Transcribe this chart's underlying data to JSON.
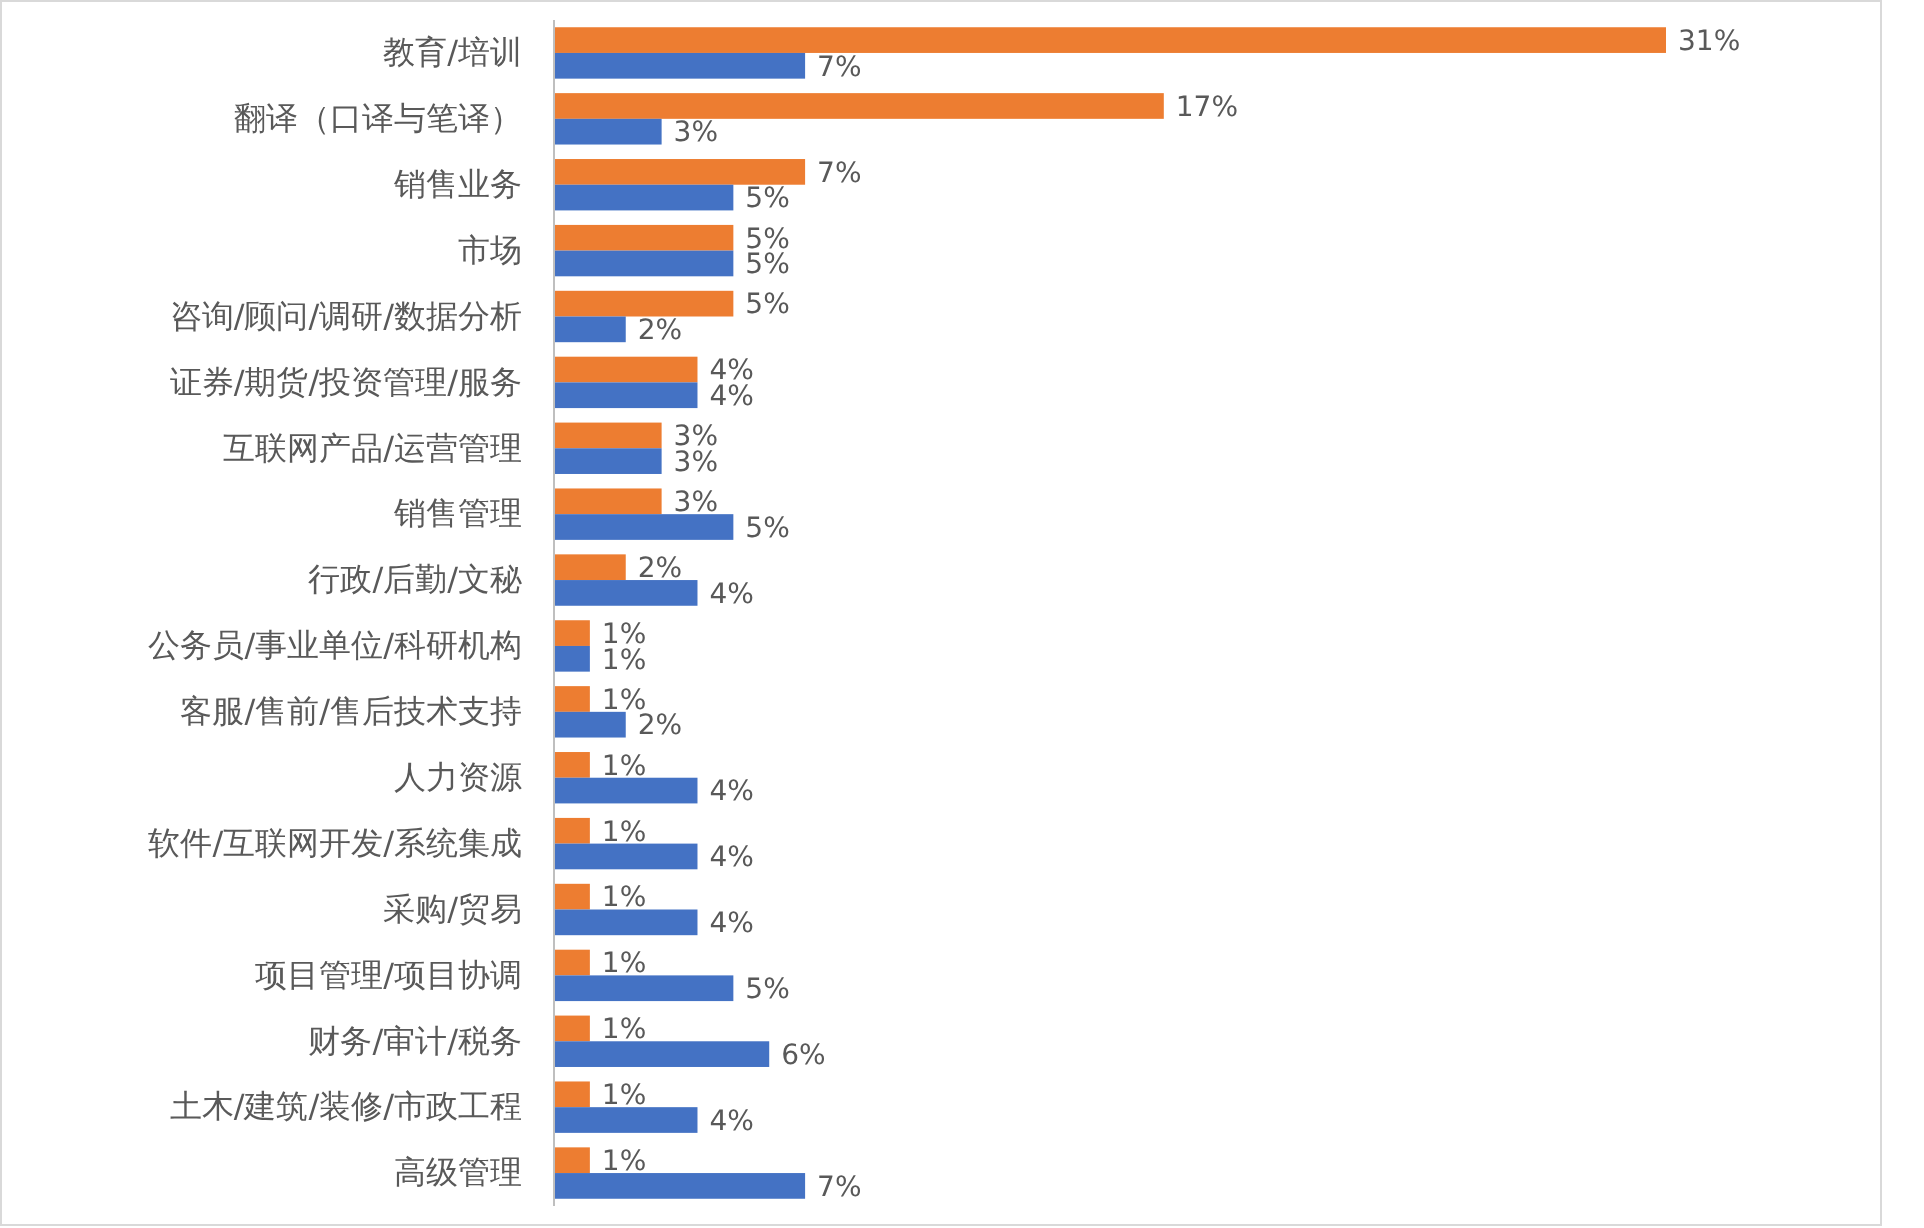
{
  "chart_data": {
    "type": "bar",
    "orientation": "horizontal",
    "categories": [
      "教育/培训",
      "翻译（口译与笔译）",
      "销售业务",
      "市场",
      "咨询/顾问/调研/数据分析",
      "证券/期货/投资管理/服务",
      "互联网产品/运营管理",
      "销售管理",
      "行政/后勤/文秘",
      "公务员/事业单位/科研机构",
      "客服/售前/售后技术支持",
      "人力资源",
      "软件/互联网开发/系统集成",
      "采购/贸易",
      "项目管理/项目协调",
      "财务/审计/税务",
      "土木/建筑/装修/市政工程",
      "高级管理"
    ],
    "series": [
      {
        "color": "#ed7d31",
        "values": [
          31,
          17,
          7,
          5,
          5,
          4,
          3,
          3,
          2,
          1,
          1,
          1,
          1,
          1,
          1,
          1,
          1,
          1
        ],
        "value_labels": [
          "31%",
          "17%",
          "7%",
          "5%",
          "5%",
          "4%",
          "3%",
          "3%",
          "2%",
          "1%",
          "1%",
          "1%",
          "1%",
          "1%",
          "1%",
          "1%",
          "1%",
          "1%"
        ]
      },
      {
        "color": "#4472c4",
        "values": [
          7,
          3,
          5,
          5,
          2,
          4,
          3,
          5,
          4,
          1,
          2,
          4,
          4,
          4,
          5,
          6,
          4,
          7
        ],
        "value_labels": [
          "7%",
          "3%",
          "5%",
          "5%",
          "2%",
          "4%",
          "3%",
          "5%",
          "4%",
          "1%",
          "2%",
          "4%",
          "4%",
          "4%",
          "5%",
          "6%",
          "4%",
          "7%"
        ]
      }
    ]
  }
}
